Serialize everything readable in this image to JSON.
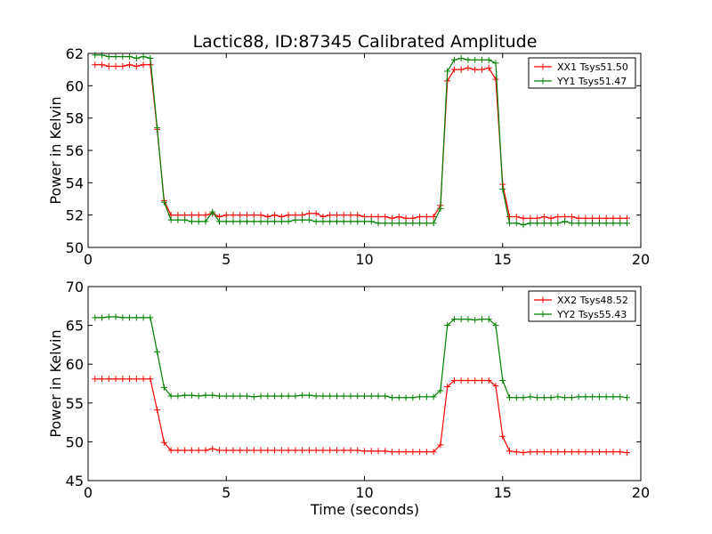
{
  "chart_data": {
    "title": "Lactic88, ID:87345 Calibrated Amplitude",
    "charts": [
      {
        "type": "line",
        "xlim": [
          0,
          20
        ],
        "ylim": [
          50,
          62
        ],
        "xticks": [
          0,
          5,
          10,
          15,
          20
        ],
        "yticks": [
          50,
          52,
          54,
          56,
          58,
          60,
          62
        ],
        "xlabel": "",
        "ylabel": "Power in Kelvin",
        "legend_position": "top-right",
        "series": [
          {
            "name": "XX1 Tsys51.50",
            "color": "#ff0000",
            "x": [
              0.25,
              0.5,
              0.75,
              1.0,
              1.25,
              1.5,
              1.75,
              2.0,
              2.25,
              2.5,
              2.75,
              3.0,
              3.25,
              3.5,
              3.75,
              4.0,
              4.25,
              4.5,
              4.75,
              5.0,
              5.25,
              5.5,
              5.75,
              6.0,
              6.25,
              6.5,
              6.75,
              7.0,
              7.25,
              7.5,
              7.75,
              8.0,
              8.25,
              8.5,
              8.75,
              9.0,
              9.25,
              9.5,
              9.75,
              10.0,
              10.25,
              10.5,
              10.75,
              11.0,
              11.25,
              11.5,
              11.75,
              12.0,
              12.25,
              12.5,
              12.75,
              13.0,
              13.25,
              13.5,
              13.75,
              14.0,
              14.25,
              14.5,
              14.75,
              15.0,
              15.25,
              15.5,
              15.75,
              16.0,
              16.25,
              16.5,
              16.75,
              17.0,
              17.25,
              17.5,
              17.75,
              18.0,
              18.25,
              18.5,
              18.75,
              19.0,
              19.25,
              19.5
            ],
            "y": [
              61.3,
              61.3,
              61.2,
              61.2,
              61.2,
              61.3,
              61.2,
              61.3,
              61.3,
              57.3,
              52.9,
              52.0,
              52.0,
              52.0,
              52.0,
              52.0,
              52.0,
              52.1,
              51.9,
              52.0,
              52.0,
              52.0,
              52.0,
              52.0,
              52.0,
              51.9,
              52.0,
              51.9,
              52.0,
              52.0,
              52.0,
              52.1,
              52.1,
              51.9,
              52.0,
              52.0,
              52.0,
              52.0,
              52.0,
              51.9,
              51.9,
              51.9,
              51.9,
              51.8,
              51.9,
              51.8,
              51.8,
              51.9,
              51.9,
              51.9,
              52.6,
              60.3,
              61.0,
              61.0,
              61.1,
              61.0,
              61.0,
              61.1,
              60.4,
              53.9,
              51.9,
              51.9,
              51.8,
              51.8,
              51.8,
              51.9,
              51.8,
              51.9,
              51.9,
              51.9,
              51.8,
              51.8,
              51.8,
              51.8,
              51.8,
              51.8,
              51.8,
              51.8
            ]
          },
          {
            "name": "YY1 Tsys51.47",
            "color": "#008000",
            "x": [
              0.25,
              0.5,
              0.75,
              1.0,
              1.25,
              1.5,
              1.75,
              2.0,
              2.25,
              2.5,
              2.75,
              3.0,
              3.25,
              3.5,
              3.75,
              4.0,
              4.25,
              4.5,
              4.75,
              5.0,
              5.25,
              5.5,
              5.75,
              6.0,
              6.25,
              6.5,
              6.75,
              7.0,
              7.25,
              7.5,
              7.75,
              8.0,
              8.25,
              8.5,
              8.75,
              9.0,
              9.25,
              9.5,
              9.75,
              10.0,
              10.25,
              10.5,
              10.75,
              11.0,
              11.25,
              11.5,
              11.75,
              12.0,
              12.25,
              12.5,
              12.75,
              13.0,
              13.25,
              13.5,
              13.75,
              14.0,
              14.25,
              14.5,
              14.75,
              15.0,
              15.25,
              15.5,
              15.75,
              16.0,
              16.25,
              16.5,
              16.75,
              17.0,
              17.25,
              17.5,
              17.75,
              18.0,
              18.25,
              18.5,
              18.75,
              19.0,
              19.25,
              19.5
            ],
            "y": [
              61.9,
              61.9,
              61.8,
              61.8,
              61.8,
              61.8,
              61.7,
              61.8,
              61.7,
              57.4,
              52.8,
              51.7,
              51.7,
              51.7,
              51.6,
              51.6,
              51.6,
              52.2,
              51.6,
              51.6,
              51.6,
              51.6,
              51.6,
              51.6,
              51.6,
              51.6,
              51.6,
              51.6,
              51.6,
              51.7,
              51.7,
              51.7,
              51.6,
              51.6,
              51.6,
              51.6,
              51.6,
              51.6,
              51.6,
              51.6,
              51.6,
              51.5,
              51.5,
              51.5,
              51.5,
              51.5,
              51.5,
              51.5,
              51.5,
              51.5,
              52.4,
              60.9,
              61.6,
              61.7,
              61.6,
              61.6,
              61.6,
              61.6,
              61.4,
              53.6,
              51.5,
              51.5,
              51.4,
              51.5,
              51.5,
              51.5,
              51.5,
              51.5,
              51.6,
              51.5,
              51.5,
              51.5,
              51.5,
              51.5,
              51.5,
              51.5,
              51.5,
              51.5
            ]
          }
        ]
      },
      {
        "type": "line",
        "xlim": [
          0,
          20
        ],
        "ylim": [
          45,
          70
        ],
        "xticks": [
          0,
          5,
          10,
          15,
          20
        ],
        "yticks": [
          45,
          50,
          55,
          60,
          65,
          70
        ],
        "xlabel": "Time (seconds)",
        "ylabel": "Power in Kelvin",
        "legend_position": "top-right",
        "series": [
          {
            "name": "XX2 Tsys48.52",
            "color": "#ff0000",
            "x": [
              0.25,
              0.5,
              0.75,
              1.0,
              1.25,
              1.5,
              1.75,
              2.0,
              2.25,
              2.5,
              2.75,
              3.0,
              3.25,
              3.5,
              3.75,
              4.0,
              4.25,
              4.5,
              4.75,
              5.0,
              5.25,
              5.5,
              5.75,
              6.0,
              6.25,
              6.5,
              6.75,
              7.0,
              7.25,
              7.5,
              7.75,
              8.0,
              8.25,
              8.5,
              8.75,
              9.0,
              9.25,
              9.5,
              9.75,
              10.0,
              10.25,
              10.5,
              10.75,
              11.0,
              11.25,
              11.5,
              11.75,
              12.0,
              12.25,
              12.5,
              12.75,
              13.0,
              13.25,
              13.5,
              13.75,
              14.0,
              14.25,
              14.5,
              14.75,
              15.0,
              15.25,
              15.5,
              15.75,
              16.0,
              16.25,
              16.5,
              16.75,
              17.0,
              17.25,
              17.5,
              17.75,
              18.0,
              18.25,
              18.5,
              18.75,
              19.0,
              19.25,
              19.5
            ],
            "y": [
              58.1,
              58.1,
              58.1,
              58.1,
              58.1,
              58.1,
              58.1,
              58.1,
              58.1,
              54.1,
              49.9,
              48.9,
              48.9,
              48.9,
              48.9,
              48.9,
              48.9,
              49.1,
              48.9,
              48.9,
              48.9,
              48.9,
              48.9,
              48.9,
              48.9,
              48.9,
              48.9,
              48.9,
              48.9,
              48.9,
              48.9,
              48.9,
              48.9,
              48.9,
              48.9,
              48.9,
              48.9,
              48.9,
              48.9,
              48.8,
              48.8,
              48.8,
              48.8,
              48.7,
              48.7,
              48.7,
              48.7,
              48.7,
              48.7,
              48.7,
              49.6,
              57.1,
              57.9,
              57.9,
              57.9,
              57.9,
              57.9,
              57.9,
              57.2,
              50.7,
              48.8,
              48.7,
              48.6,
              48.7,
              48.7,
              48.7,
              48.7,
              48.7,
              48.7,
              48.7,
              48.7,
              48.7,
              48.7,
              48.7,
              48.7,
              48.7,
              48.7,
              48.6
            ]
          },
          {
            "name": "YY2 Tsys55.43",
            "color": "#008000",
            "x": [
              0.25,
              0.5,
              0.75,
              1.0,
              1.25,
              1.5,
              1.75,
              2.0,
              2.25,
              2.5,
              2.75,
              3.0,
              3.25,
              3.5,
              3.75,
              4.0,
              4.25,
              4.5,
              4.75,
              5.0,
              5.25,
              5.5,
              5.75,
              6.0,
              6.25,
              6.5,
              6.75,
              7.0,
              7.25,
              7.5,
              7.75,
              8.0,
              8.25,
              8.5,
              8.75,
              9.0,
              9.25,
              9.5,
              9.75,
              10.0,
              10.25,
              10.5,
              10.75,
              11.0,
              11.25,
              11.5,
              11.75,
              12.0,
              12.25,
              12.5,
              12.75,
              13.0,
              13.25,
              13.5,
              13.75,
              14.0,
              14.25,
              14.5,
              14.75,
              15.0,
              15.25,
              15.5,
              15.75,
              16.0,
              16.25,
              16.5,
              16.75,
              17.0,
              17.25,
              17.5,
              17.75,
              18.0,
              18.25,
              18.5,
              18.75,
              19.0,
              19.25,
              19.5
            ],
            "y": [
              66.0,
              66.0,
              66.1,
              66.1,
              66.0,
              66.0,
              66.0,
              66.0,
              66.0,
              61.6,
              57.0,
              55.9,
              55.9,
              56.0,
              56.0,
              55.9,
              56.0,
              56.0,
              55.9,
              55.9,
              55.9,
              55.9,
              55.9,
              55.8,
              55.9,
              55.9,
              55.9,
              55.9,
              55.9,
              55.9,
              56.0,
              56.0,
              55.9,
              55.9,
              55.9,
              55.9,
              55.9,
              55.9,
              55.9,
              55.9,
              55.9,
              55.9,
              55.9,
              55.7,
              55.7,
              55.7,
              55.7,
              55.8,
              55.8,
              55.8,
              56.6,
              65.0,
              65.8,
              65.8,
              65.8,
              65.7,
              65.8,
              65.8,
              65.0,
              57.9,
              55.7,
              55.7,
              55.7,
              55.8,
              55.7,
              55.7,
              55.7,
              55.8,
              55.7,
              55.7,
              55.8,
              55.8,
              55.8,
              55.8,
              55.8,
              55.8,
              55.8,
              55.7
            ]
          }
        ]
      }
    ]
  }
}
